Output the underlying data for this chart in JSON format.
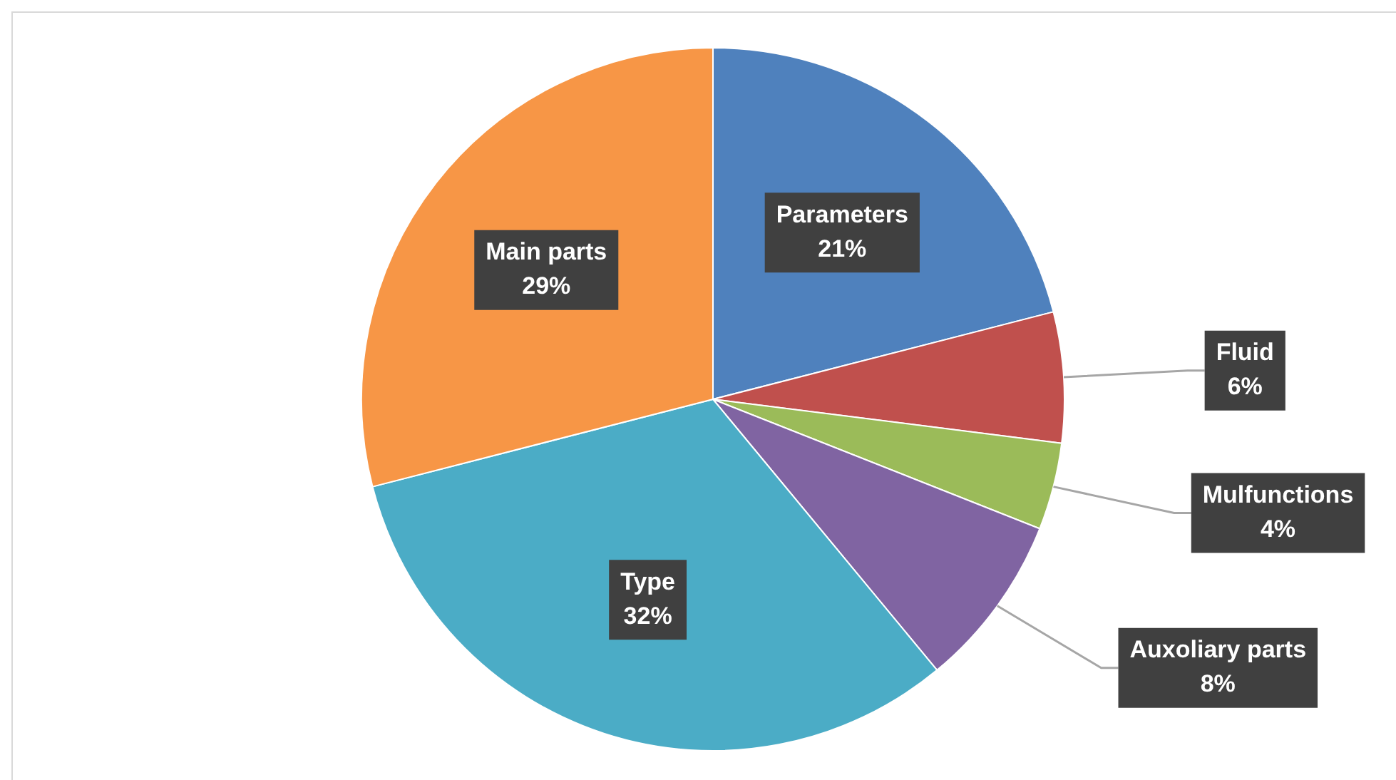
{
  "chart_data": {
    "type": "pie",
    "categories": [
      "Parameters",
      "Fluid",
      "Mulfunctions",
      "Auxoliary parts",
      "Type",
      "Main parts"
    ],
    "values": [
      21,
      6,
      4,
      8,
      32,
      29
    ],
    "colors": [
      "#4f81bd",
      "#c0504d",
      "#9bbb59",
      "#8064a2",
      "#4bacc6",
      "#f79646"
    ],
    "value_labels": [
      "21%",
      "6%",
      "4%",
      "8%",
      "32%",
      "29%"
    ],
    "legend": false
  }
}
